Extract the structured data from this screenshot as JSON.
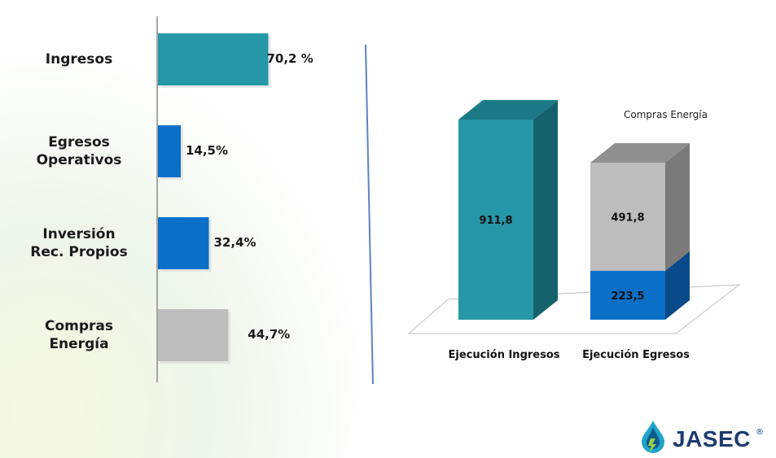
{
  "colors": {
    "teal": "#2597a6",
    "blue": "#0b6fc8",
    "gray": "#bdbdbd"
  },
  "left_chart": {
    "type": "bar",
    "categories": [
      "Ingresos",
      "Egresos\nOperativos",
      "Inversión\nRec. Propios",
      "Compras\nEnergía"
    ],
    "values": [
      70.2,
      14.5,
      32.4,
      44.7
    ],
    "value_labels": [
      "70,2 %",
      "14,5%",
      "32,4%",
      "44,7%"
    ],
    "colors": [
      "teal",
      "blue",
      "blue",
      "gray"
    ],
    "xlim": [
      0,
      100
    ]
  },
  "chart_data": {
    "type": "bar",
    "categories": [
      "Ejecución Ingresos",
      "Ejecución Egresos"
    ],
    "series": [
      {
        "name": "",
        "values": [
          911.8,
          223.5
        ],
        "labels": [
          "911,8",
          "223,5"
        ]
      },
      {
        "name": "Compras Energía",
        "values": [
          0,
          491.8
        ],
        "labels": [
          "",
          "491,8"
        ]
      }
    ],
    "stacked": true,
    "legend_text": "Compras Energía"
  },
  "brand": {
    "name": "JASEC",
    "reg": "®"
  }
}
